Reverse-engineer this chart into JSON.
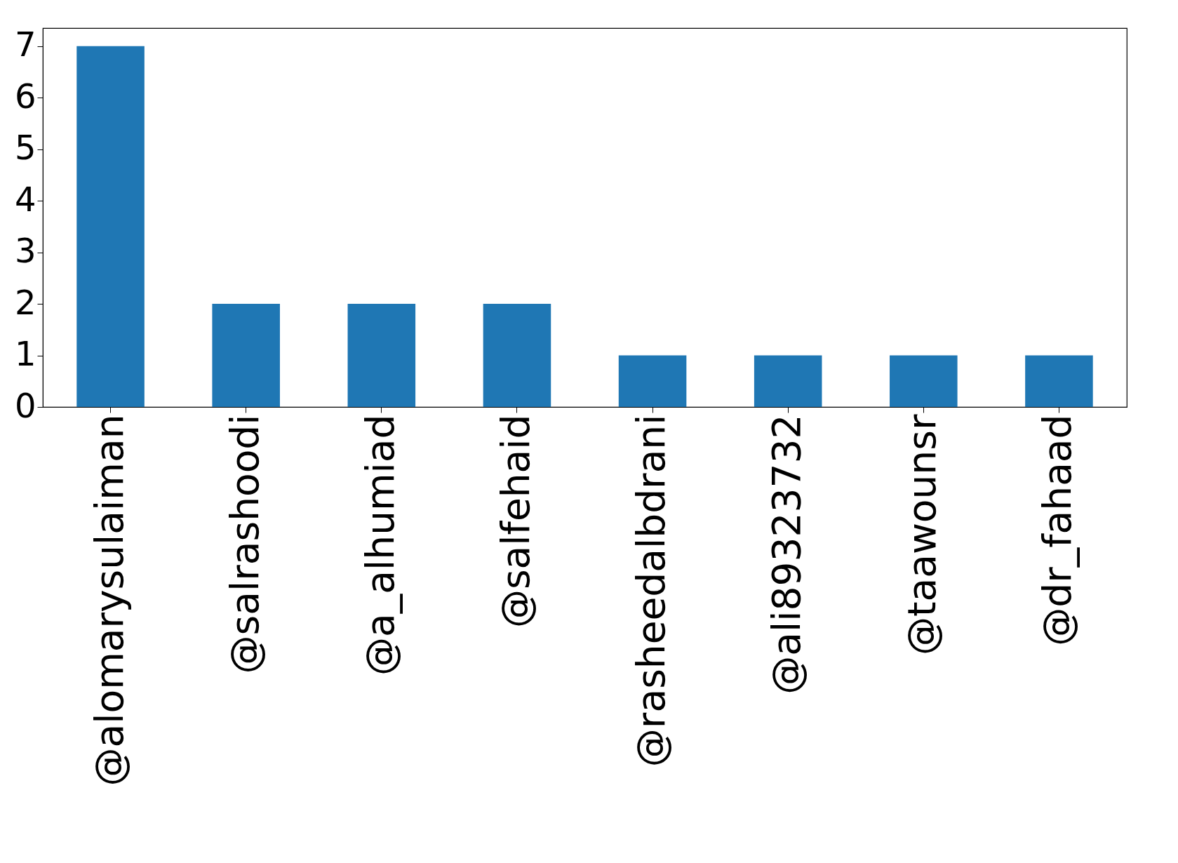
{
  "chart_data": {
    "type": "bar",
    "categories": [
      "@alomarysulaiman",
      "@salrashoodi",
      "@a_alhumiad",
      "@salfehaid",
      "@rasheedalbdrani",
      "@ali89323732",
      "@taawounsr",
      "@dr_fahaad"
    ],
    "values": [
      7,
      2,
      2,
      2,
      1,
      1,
      1,
      1
    ],
    "color": "#1f77b4",
    "ylim": [
      0,
      7.35
    ],
    "yticks": [
      0,
      1,
      2,
      3,
      4,
      5,
      6,
      7
    ],
    "grid": false
  }
}
